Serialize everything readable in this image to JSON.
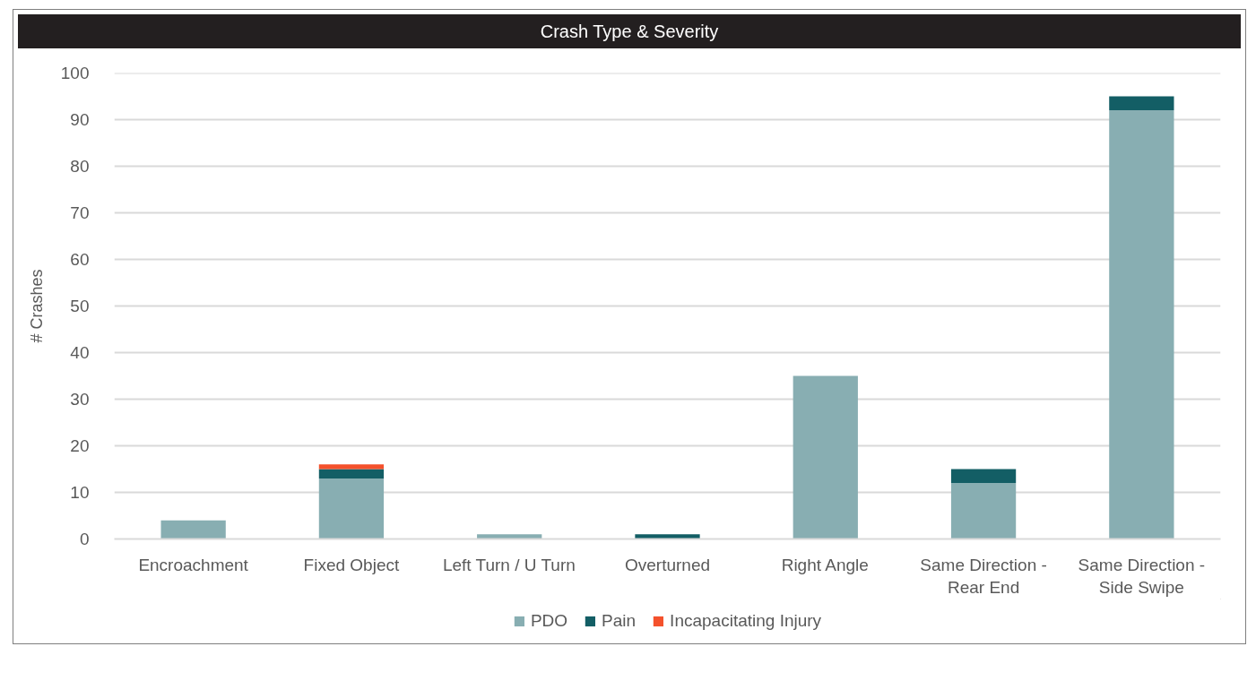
{
  "chart_data": {
    "type": "bar",
    "title": "Crash Type & Severity",
    "ylabel": "# Crashes",
    "categories": [
      "Encroachment",
      "Fixed Object",
      "Left Turn / U Turn",
      "Overturned",
      "Right Angle",
      "Same Direction - Rear End",
      "Same Direction - Side Swipe"
    ],
    "series": [
      {
        "name": "PDO",
        "color": "#88aeb2",
        "values": [
          4,
          13,
          1,
          null,
          35,
          12,
          92
        ]
      },
      {
        "name": "Pain",
        "color": "#135e65",
        "values": [
          null,
          2,
          null,
          1,
          null,
          3,
          3
        ]
      },
      {
        "name": "Incapacitating Injury",
        "color": "#f4512c",
        "values": [
          null,
          1,
          null,
          null,
          null,
          null,
          null
        ]
      }
    ],
    "stacked": true,
    "ylim": [
      0,
      100
    ],
    "yticks": [
      0,
      10,
      20,
      30,
      40,
      50,
      60,
      70,
      80,
      90,
      100
    ],
    "grid": "y",
    "legend": "bottom"
  }
}
